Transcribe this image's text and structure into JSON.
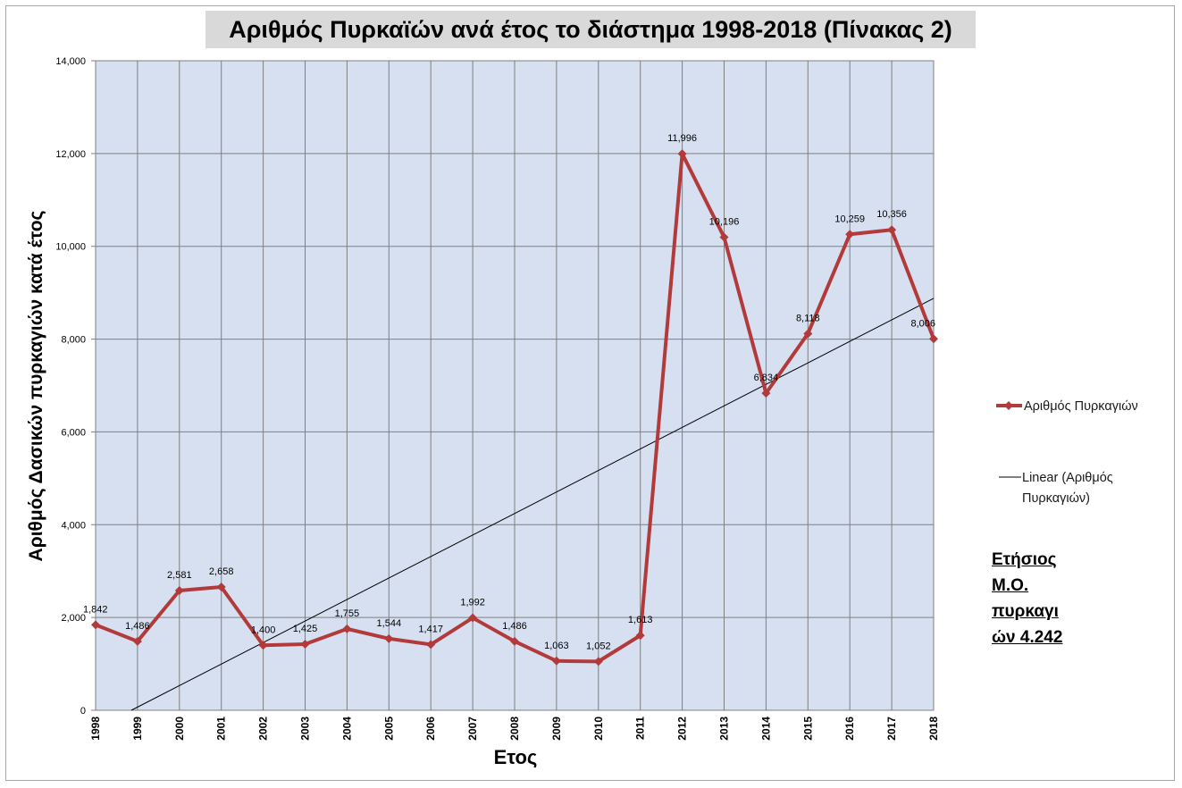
{
  "chart_data": {
    "type": "line",
    "title": "Αριθμός Πυρκαϊών ανά έτος το διάστημα 1998-2018 (Πίνακας  2)",
    "xlabel": "Ετος",
    "ylabel": "Αριθμός Δασικών πυρκαγιών κατά έτος",
    "categories": [
      "1998",
      "1999",
      "2000",
      "2001",
      "2002",
      "2003",
      "2004",
      "2005",
      "2006",
      "2007",
      "2008",
      "2009",
      "2010",
      "2011",
      "2012",
      "2013",
      "2014",
      "2015",
      "2016",
      "2017",
      "2018"
    ],
    "series": [
      {
        "name": "Αριθμός Πυρκαγιών",
        "values": [
          1842,
          1486,
          2581,
          2658,
          1400,
          1425,
          1755,
          1544,
          1417,
          1992,
          1486,
          1063,
          1052,
          1613,
          11996,
          10196,
          6834,
          8118,
          10259,
          10356,
          8006
        ],
        "labels": [
          "1,842",
          "1,486",
          "2,581",
          "2,658",
          "1,400",
          "1,425",
          "1,755",
          "1,544",
          "1,417",
          "1,992",
          "1,486",
          "1,063",
          "1,052",
          "1,613",
          "11,996",
          "10,196",
          "6,834",
          "8,118",
          "10,259",
          "10,356",
          "8,006"
        ],
        "color": "#b33a3a"
      }
    ],
    "trendline": {
      "type": "linear",
      "legend_line1": "Linear (Αριθμός",
      "legend_line2": "Πυρκαγιών)",
      "color": "#000000"
    },
    "ylim": [
      0,
      14000
    ],
    "yticks": [
      0,
      2000,
      4000,
      6000,
      8000,
      10000,
      12000,
      14000
    ],
    "ytick_labels": [
      "0",
      "2,000",
      "4,000",
      "6,000",
      "8,000",
      "10,000",
      "12,000",
      "14,000"
    ],
    "grid": true,
    "plot_background": "#d6e0f0",
    "gridline_color": "#7f7f7f",
    "legend_position": "right"
  },
  "annotation": {
    "lines": [
      "Ετήσιος",
      "Μ.Ο.",
      "πυρκαγι",
      "ών 4.242"
    ]
  }
}
